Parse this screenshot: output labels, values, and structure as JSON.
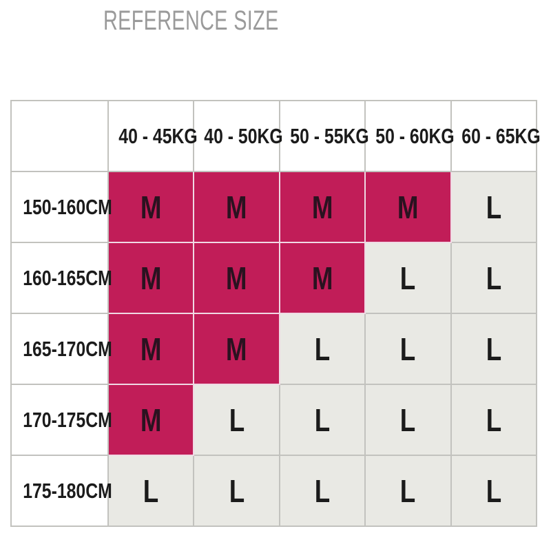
{
  "page": {
    "title": "REFERENCE SIZE"
  },
  "chart_data": {
    "type": "table",
    "title": "REFERENCE SIZE",
    "corner_cell": "",
    "columns": [
      "40 - 45KG",
      "40 - 50KG",
      "50 - 55KG",
      "50 - 60KG",
      "60 - 65KG"
    ],
    "rows": [
      {
        "label": "150-160CM",
        "cells": [
          "M",
          "M",
          "M",
          "M",
          "L"
        ]
      },
      {
        "label": "160-165CM",
        "cells": [
          "M",
          "M",
          "M",
          "L",
          "L"
        ]
      },
      {
        "label": "165-170CM",
        "cells": [
          "M",
          "M",
          "L",
          "L",
          "L"
        ]
      },
      {
        "label": "170-175CM",
        "cells": [
          "M",
          "L",
          "L",
          "L",
          "L"
        ]
      },
      {
        "label": "175-180CM",
        "cells": [
          "L",
          "L",
          "L",
          "L",
          "L"
        ]
      }
    ],
    "colors": {
      "size_m_bg": "#c11d58",
      "size_l_bg": "#e9e9e4",
      "grid_border": "#c2c2be",
      "title_text": "#9a9a9a",
      "label_text": "#1b1b1b"
    }
  }
}
